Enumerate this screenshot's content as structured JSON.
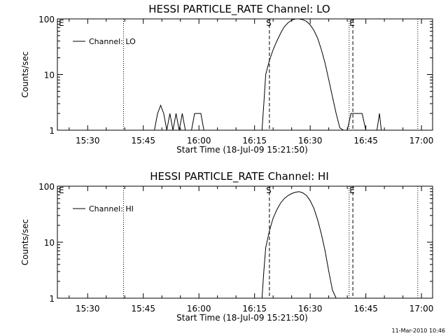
{
  "footer": "11-Mar-2010 10:46",
  "chart_data": [
    {
      "type": "line",
      "title": "HESSI PARTICLE_RATE Channel: LO",
      "xlabel": "Start Time (18-Jul-09 15:21:50)",
      "ylabel": "Counts/sec",
      "legend": "Channel: LO",
      "legend_position": "top-left",
      "y_scale": "log",
      "xlim": [
        "15:21:50",
        "17:03:00"
      ],
      "ylim": [
        1,
        100
      ],
      "x_ticks": [
        "15:30",
        "15:45",
        "16:00",
        "16:15",
        "16:30",
        "16:45",
        "17:00"
      ],
      "y_ticks": [
        "1",
        "10",
        "100"
      ],
      "markers": [
        {
          "label": "E",
          "time": "15:21:50",
          "style": "none"
        },
        {
          "label": "S",
          "time": "16:19:00",
          "style": "dashed"
        },
        {
          "label": "E",
          "time": "16:41:30",
          "style": "dashed"
        }
      ],
      "dotted_lines": [
        "15:39:40",
        "16:40:30",
        "16:59:00"
      ],
      "series": [
        {
          "x": [
            "15:48:00",
            "15:48:50",
            "15:49:40",
            "15:50:30",
            "15:51:20",
            "15:52:10",
            "15:53:00",
            "15:53:50",
            "15:54:40",
            "15:55:30",
            "15:56:20",
            "15:57:10",
            "15:58:00",
            "15:58:50",
            "15:59:40",
            "16:00:30",
            "16:01:20",
            "16:02:10",
            "16:17:00",
            "16:17:30",
            "16:18:00",
            "16:19:00",
            "16:20:00",
            "16:21:00",
            "16:22:00",
            "16:23:00",
            "16:24:00",
            "16:25:00",
            "16:26:00",
            "16:27:00",
            "16:28:00",
            "16:29:00",
            "16:30:00",
            "16:31:00",
            "16:32:00",
            "16:33:00",
            "16:34:00",
            "16:35:00",
            "16:36:00",
            "16:37:00",
            "16:38:00",
            "16:39:00",
            "16:40:00",
            "16:41:00",
            "16:42:00",
            "16:43:00",
            "16:44:00",
            "16:45:00",
            "16:46:00",
            "16:47:00",
            "16:48:00",
            "16:48:40",
            "16:49:10",
            "16:49:40"
          ],
          "y": [
            1,
            2,
            2.8,
            2,
            1,
            2,
            1,
            2,
            1,
            2,
            1,
            1,
            1,
            2,
            2,
            2,
            1,
            1,
            1,
            3,
            10,
            18,
            28,
            40,
            55,
            72,
            85,
            95,
            100,
            100,
            97,
            90,
            78,
            62,
            45,
            28,
            16,
            8,
            4,
            2,
            1.1,
            1,
            1,
            2,
            2,
            2,
            2,
            1,
            1,
            1,
            1,
            2,
            1,
            1
          ]
        }
      ]
    },
    {
      "type": "line",
      "title": "HESSI PARTICLE_RATE Channel: HI",
      "xlabel": "Start Time (18-Jul-09 15:21:50)",
      "ylabel": "Counts/sec",
      "legend": "Channel: HI",
      "legend_position": "top-left",
      "y_scale": "log",
      "xlim": [
        "15:21:50",
        "17:03:00"
      ],
      "ylim": [
        1,
        100
      ],
      "x_ticks": [
        "15:30",
        "15:45",
        "16:00",
        "16:15",
        "16:30",
        "16:45",
        "17:00"
      ],
      "y_ticks": [
        "1",
        "10",
        "100"
      ],
      "markers": [
        {
          "label": "E",
          "time": "15:21:50",
          "style": "none"
        },
        {
          "label": "S",
          "time": "16:19:00",
          "style": "dashed"
        },
        {
          "label": "E",
          "time": "16:41:30",
          "style": "dashed"
        }
      ],
      "dotted_lines": [
        "15:39:40",
        "16:40:30",
        "16:59:00"
      ],
      "series": [
        {
          "x": [
            "16:17:00",
            "16:17:30",
            "16:18:00",
            "16:19:00",
            "16:20:00",
            "16:21:00",
            "16:22:00",
            "16:23:00",
            "16:24:00",
            "16:25:00",
            "16:26:00",
            "16:27:00",
            "16:28:00",
            "16:29:00",
            "16:30:00",
            "16:31:00",
            "16:32:00",
            "16:33:00",
            "16:34:00",
            "16:35:00",
            "16:36:00",
            "16:37:00"
          ],
          "y": [
            1,
            3,
            8,
            16,
            27,
            38,
            50,
            60,
            68,
            74,
            78,
            80,
            76,
            68,
            55,
            40,
            25,
            14,
            7,
            3,
            1.4,
            1
          ]
        }
      ]
    }
  ]
}
